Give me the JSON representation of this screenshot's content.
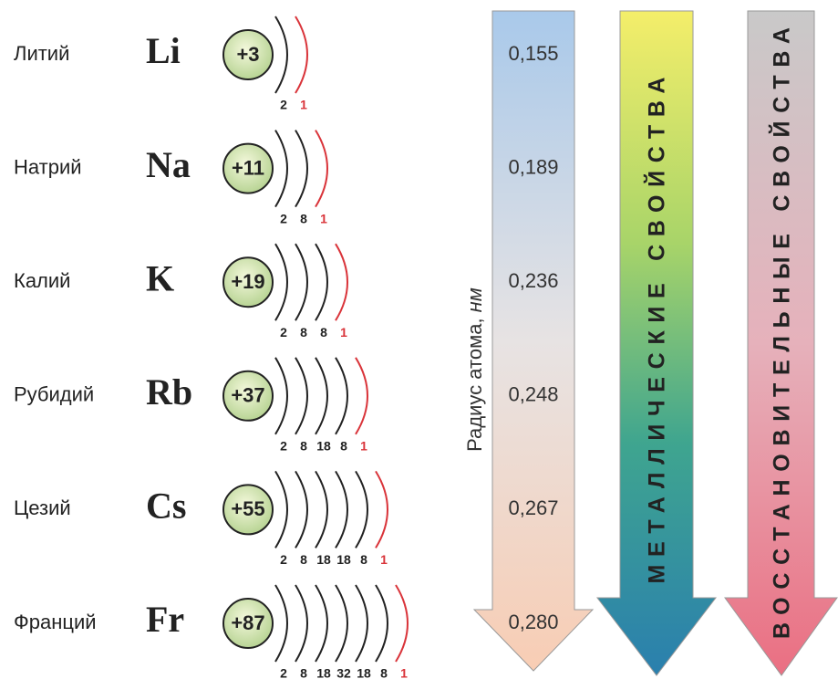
{
  "elements": [
    {
      "name": "Литий",
      "symbol": "Li",
      "charge": "+3",
      "shells": [
        2,
        1
      ],
      "radius": "0,155"
    },
    {
      "name": "Натрий",
      "symbol": "Na",
      "charge": "+11",
      "shells": [
        2,
        8,
        1
      ],
      "radius": "0,189"
    },
    {
      "name": "Калий",
      "symbol": "K",
      "charge": "+19",
      "shells": [
        2,
        8,
        8,
        1
      ],
      "radius": "0,236"
    },
    {
      "name": "Рубидий",
      "symbol": "Rb",
      "charge": "+37",
      "shells": [
        2,
        8,
        18,
        8,
        1
      ],
      "radius": "0,248"
    },
    {
      "name": "Цезий",
      "symbol": "Cs",
      "charge": "+55",
      "shells": [
        2,
        8,
        18,
        18,
        8,
        1
      ],
      "radius": "0,267"
    },
    {
      "name": "Франций",
      "symbol": "Fr",
      "charge": "+87",
      "shells": [
        2,
        8,
        18,
        32,
        18,
        8,
        1
      ],
      "radius": "0,280"
    }
  ],
  "radius_arrow": {
    "label": "Радиус атома, ",
    "unit": "нм"
  },
  "metallic_arrow": {
    "label": "МЕТАЛЛИЧЕСКИЕ СВОЙСТВА"
  },
  "reducing_arrow": {
    "label": "ВОССТАНОВИТЕЛЬНЫЕ СВОЙСТВА"
  }
}
